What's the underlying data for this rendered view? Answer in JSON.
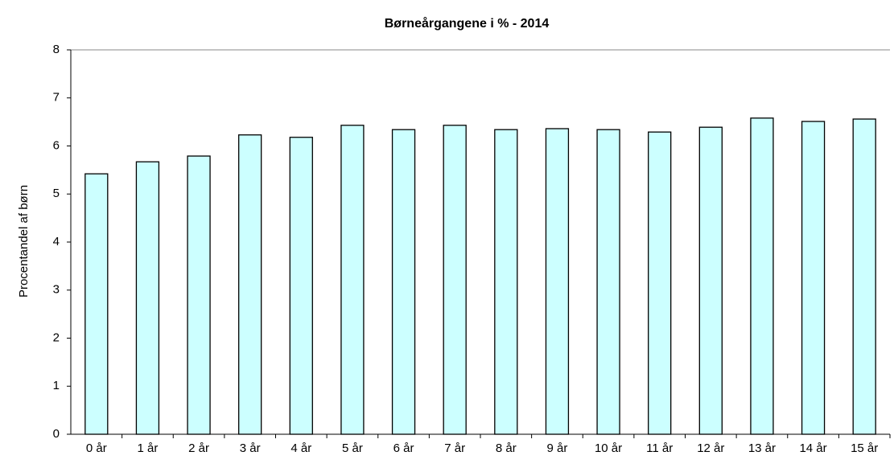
{
  "chart_data": {
    "type": "bar",
    "title": "Børneårgangene i % - 2014",
    "y_label": "Procentandel af børn",
    "categories": [
      "0 år",
      "1 år",
      "2 år",
      "3 år",
      "4 år",
      "5 år",
      "6 år",
      "7 år",
      "8 år",
      "9 år",
      "10 år",
      "11 år",
      "12 år",
      "13 år",
      "14 år",
      "15 år"
    ],
    "values": [
      5.42,
      5.67,
      5.79,
      6.23,
      6.18,
      6.43,
      6.34,
      6.43,
      6.34,
      6.36,
      6.34,
      6.29,
      6.39,
      6.58,
      6.51,
      6.56
    ],
    "color": "#ccffff",
    "ylim": [
      0,
      8
    ],
    "yticks": [
      0,
      1,
      2,
      3,
      4,
      5,
      6,
      7,
      8
    ],
    "grid": false
  }
}
